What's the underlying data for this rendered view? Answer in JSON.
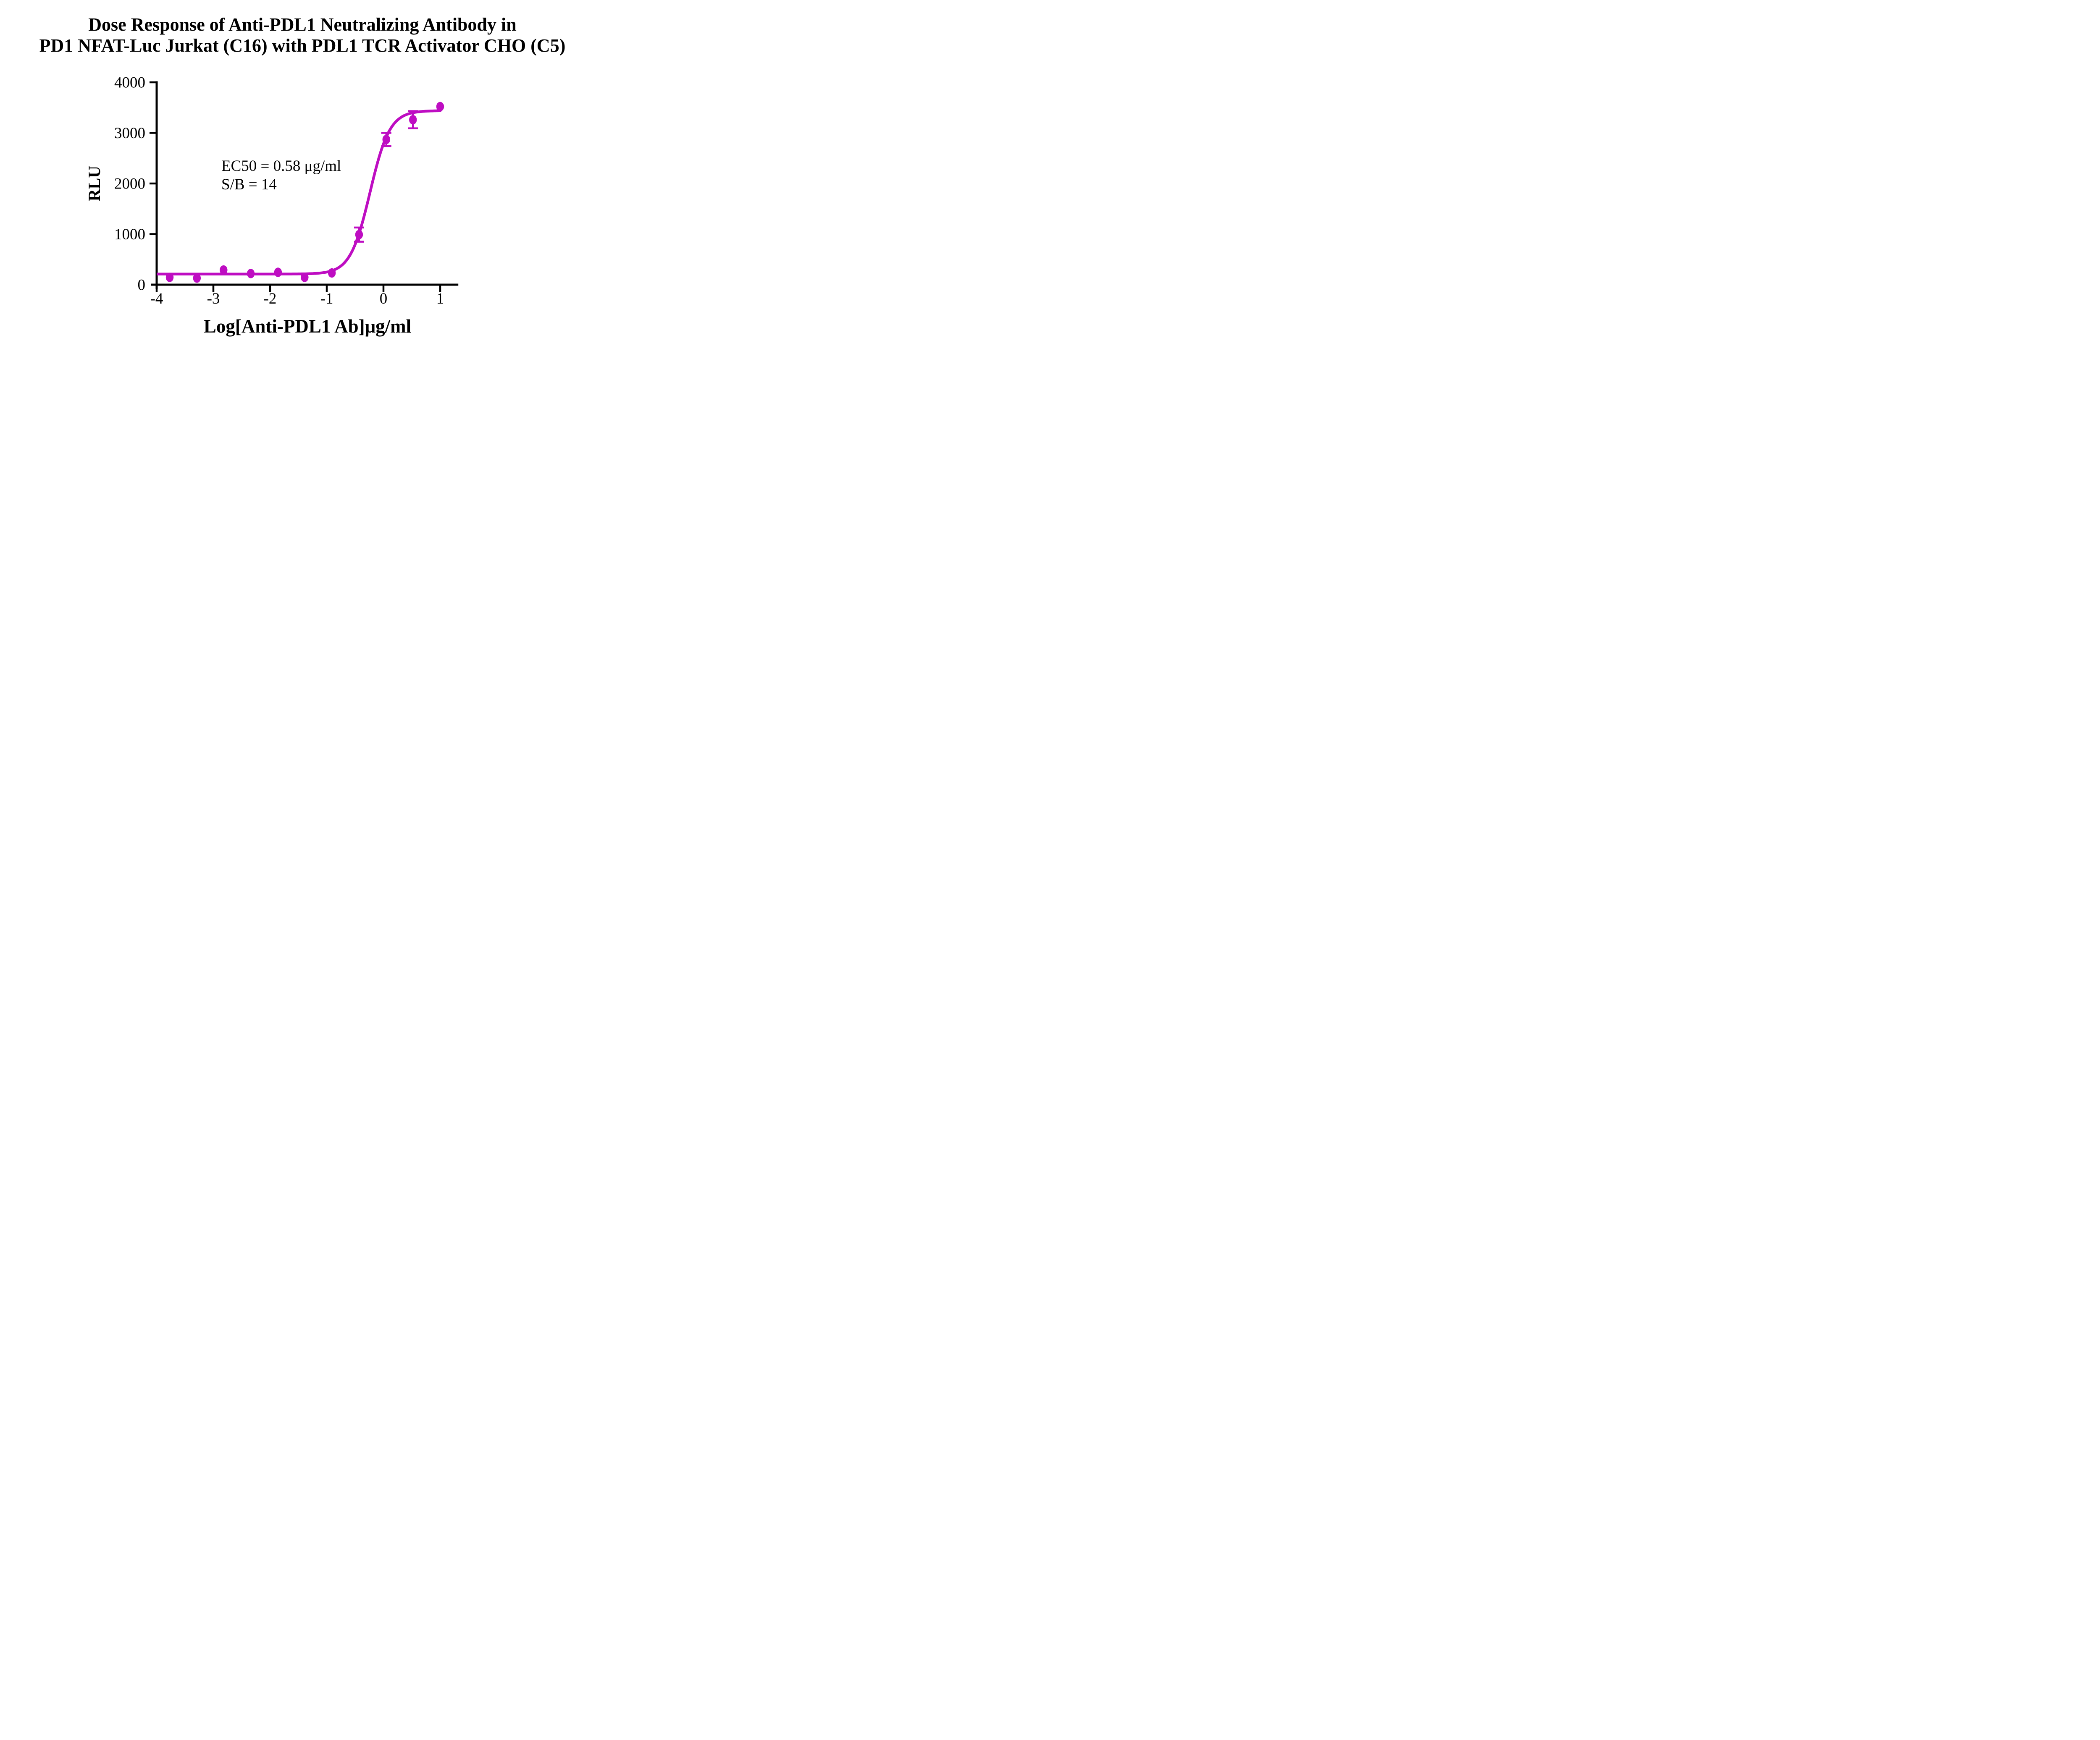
{
  "page": {
    "background": "#ffffff"
  },
  "chart_data": {
    "type": "scatter",
    "title_line1": "Dose Response of Anti-PDL1 Neutralizing Antibody in",
    "title_line2": "PD1 NFAT-Luc Jurkat (C16) with PDL1 TCR Activator CHO (C5)",
    "xlabel": "Log[Anti-PDL1 Ab]μg/ml",
    "ylabel": "RLU",
    "annotation": {
      "ec50": "EC50 = 0.58 μg/ml",
      "sb": "S/B = 14"
    },
    "x_ticks": [
      -4,
      -3,
      -2,
      -1,
      0,
      1
    ],
    "y_ticks": [
      0,
      1000,
      2000,
      3000,
      4000
    ],
    "axis": {
      "xlim": [
        -4,
        1.32
      ],
      "ylim": [
        0,
        4000
      ],
      "color": "#000000",
      "grid": false,
      "legend": "none"
    },
    "series": [
      {
        "name": "Anti-PDL1 Ab",
        "color": "#BE0DC2",
        "marker": "circle",
        "points": [
          {
            "x": -3.77,
            "y": 145,
            "err": 0
          },
          {
            "x": -3.29,
            "y": 130,
            "err": 0
          },
          {
            "x": -2.82,
            "y": 290,
            "err": 0
          },
          {
            "x": -2.34,
            "y": 220,
            "err": 0
          },
          {
            "x": -1.86,
            "y": 245,
            "err": 0
          },
          {
            "x": -1.39,
            "y": 145,
            "err": 0
          },
          {
            "x": -0.91,
            "y": 232,
            "err": 0
          },
          {
            "x": -0.43,
            "y": 990,
            "err": 140
          },
          {
            "x": 0.05,
            "y": 2870,
            "err": 130
          },
          {
            "x": 0.52,
            "y": 3260,
            "err": 170
          },
          {
            "x": 1.0,
            "y": 3520,
            "err": 0
          }
        ]
      }
    ],
    "fit_curve": {
      "model": "4PL",
      "bottom": 210,
      "top": 3440,
      "logEC50": -0.237,
      "hill": 2.5
    }
  }
}
